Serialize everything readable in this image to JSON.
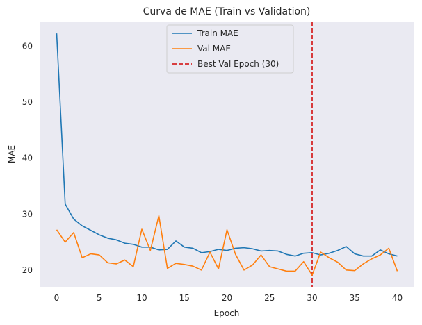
{
  "chart_data": {
    "type": "line",
    "title": "Curva de MAE (Train vs Validation)",
    "xlabel": "Epoch",
    "ylabel": "MAE",
    "xlim": [
      -2,
      42
    ],
    "ylim": [
      17,
      64.3
    ],
    "xticks": [
      0,
      5,
      10,
      15,
      20,
      25,
      30,
      35,
      40
    ],
    "yticks": [
      20,
      30,
      40,
      50,
      60
    ],
    "grid": false,
    "legend_position": "top-center",
    "background_color": "#eaeaf2",
    "series": [
      {
        "name": "Train MAE",
        "color": "#1f77b4",
        "x": [
          0,
          1,
          2,
          3,
          4,
          5,
          6,
          7,
          8,
          9,
          10,
          11,
          12,
          13,
          14,
          15,
          16,
          17,
          18,
          19,
          20,
          21,
          22,
          23,
          24,
          25,
          26,
          27,
          28,
          29,
          30,
          31,
          32,
          33,
          34,
          35,
          36,
          37,
          38,
          39,
          40
        ],
        "y": [
          62.3,
          31.8,
          29.1,
          27.9,
          27.1,
          26.3,
          25.7,
          25.4,
          24.8,
          24.6,
          24.1,
          24.1,
          23.6,
          23.7,
          25.2,
          24.1,
          23.9,
          23.1,
          23.3,
          23.7,
          23.5,
          23.9,
          24.0,
          23.8,
          23.4,
          23.5,
          23.4,
          22.8,
          22.5,
          23.0,
          23.1,
          22.7,
          23.0,
          23.5,
          24.2,
          22.9,
          22.5,
          22.5,
          23.6,
          22.9,
          22.5
        ]
      },
      {
        "name": "Val MAE",
        "color": "#ff7f0e",
        "x": [
          0,
          1,
          2,
          3,
          4,
          5,
          6,
          7,
          8,
          9,
          10,
          11,
          12,
          13,
          14,
          15,
          16,
          17,
          18,
          19,
          20,
          21,
          22,
          23,
          24,
          25,
          26,
          27,
          28,
          29,
          30,
          31,
          32,
          33,
          34,
          35,
          36,
          37,
          38,
          39,
          40
        ],
        "y": [
          27.2,
          25.0,
          26.7,
          22.2,
          22.9,
          22.7,
          21.3,
          21.1,
          21.8,
          20.6,
          27.3,
          23.5,
          29.7,
          20.3,
          21.2,
          21.0,
          20.7,
          20.0,
          23.2,
          20.2,
          27.2,
          22.8,
          20.0,
          20.9,
          22.7,
          20.6,
          20.2,
          19.8,
          19.8,
          21.5,
          19.1,
          23.2,
          22.2,
          21.4,
          20.0,
          19.9,
          21.1,
          22.0,
          22.7,
          23.9,
          19.8
        ]
      }
    ],
    "reference_lines": [
      {
        "name": "Best Val Epoch (30)",
        "x": 30,
        "color": "#d62728",
        "style": "dashed"
      }
    ]
  }
}
